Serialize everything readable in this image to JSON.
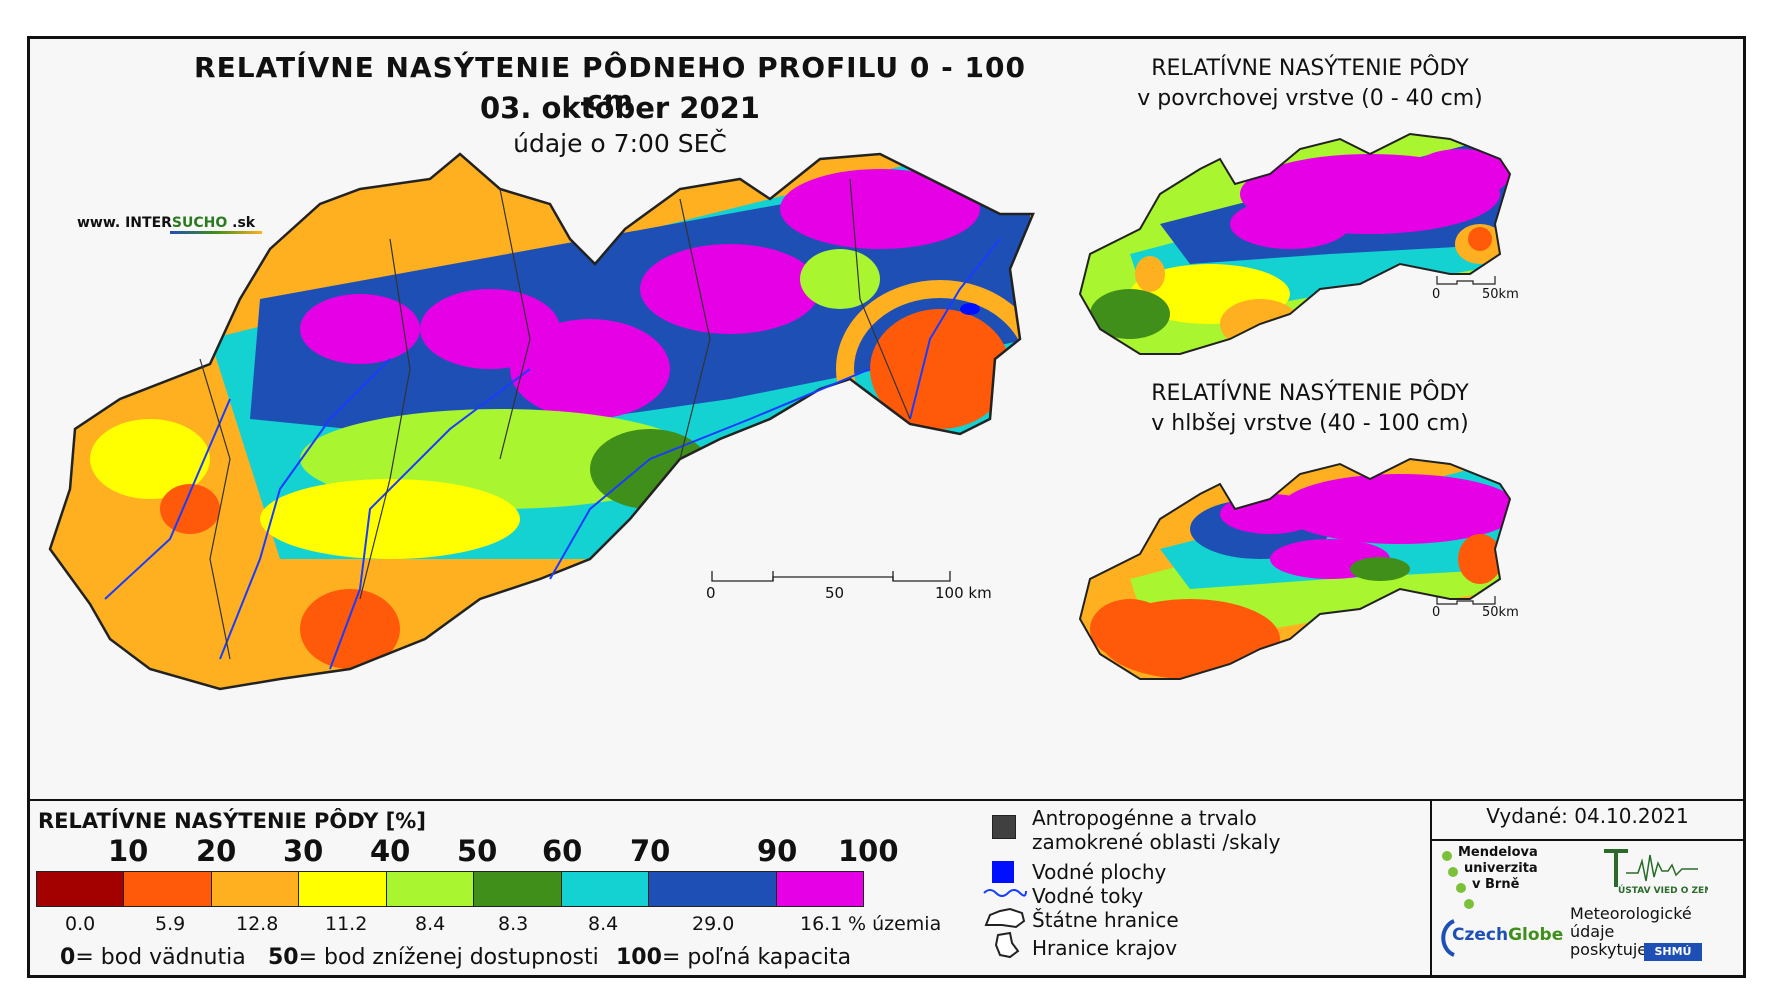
{
  "main_title": "RELATÍVNE NASÝTENIE PÔDNEHO PROFILU 0 - 100 cm",
  "date": "03. október 2021",
  "time_note": "údaje o 7:00 SEČ",
  "website": {
    "prefix": "www. INTER",
    "highlight": "SUCHO",
    "suffix": " .sk"
  },
  "inset_top": {
    "line1": "RELATÍVNE NASÝTENIE PÔDY",
    "line2": "v povrchovej vrstve (0 - 40 cm)"
  },
  "inset_bottom": {
    "line1": "RELATÍVNE NASÝTENIE PÔDY",
    "line2": "v hlbšej vrstve (40 - 100 cm)"
  },
  "main_scale": {
    "labels": [
      "0",
      "50",
      "100 km"
    ]
  },
  "inset_scale": {
    "labels": [
      "0",
      "50km"
    ]
  },
  "legend": {
    "title": "RELATÍVNE NASÝTENIE PÔDY [%]",
    "ticks": [
      "10",
      "20",
      "30",
      "40",
      "50",
      "60",
      "70",
      "90",
      "100"
    ],
    "colors": [
      "#a30000",
      "#ff5a0a",
      "#ffb020",
      "#ffff00",
      "#a8f530",
      "#3f8f1a",
      "#14d2d2",
      "#1e4fb4",
      "#e600e6"
    ],
    "percentages": [
      "0.0",
      "5.9",
      "12.8",
      "11.2",
      "8.4",
      "8.3",
      "8.4",
      "29.0",
      "16.1"
    ],
    "pct_unit": "% územia",
    "footnotes": [
      {
        "value": "0",
        "text": "= bod vädnutia"
      },
      {
        "value": "50",
        "text": "= bod zníženej dostupnosti"
      },
      {
        "value": "100",
        "text": "= poľná kapacita"
      }
    ]
  },
  "map_legend": {
    "items": [
      {
        "icon": "dark-square-icon",
        "text": "Antropogénne a trvalo zamokrené oblasti /skaly"
      },
      {
        "icon": "blue-square-icon",
        "text": "Vodné plochy"
      },
      {
        "icon": "river-line-icon",
        "text": "Vodné toky"
      },
      {
        "icon": "state-border-icon",
        "text": "Štátne hranice"
      },
      {
        "icon": "region-border-icon",
        "text": "Hranice krajov"
      }
    ]
  },
  "issued": "Vydané: 04.10.2021",
  "logos": {
    "mendel": [
      "Mendelova",
      "univerzita",
      "v Brně"
    ],
    "ustav": "ÚSTAV VIED O ZEMI",
    "czechglobe_a": "Czech",
    "czechglobe_b": "Globe",
    "shmu": "SHMÚ"
  },
  "met_data": [
    "Meteorologické",
    "údaje",
    "poskytuje:"
  ],
  "colors": {
    "magenta": "#e600e6",
    "dark_blue": "#1e4fb4",
    "cyan": "#14d2d2",
    "dark_green": "#3f8f1a",
    "light_green": "#a8f530",
    "yellow": "#ffff00",
    "orange_light": "#ffb020",
    "orange": "#ff5a0a",
    "dark_red": "#a30000"
  }
}
